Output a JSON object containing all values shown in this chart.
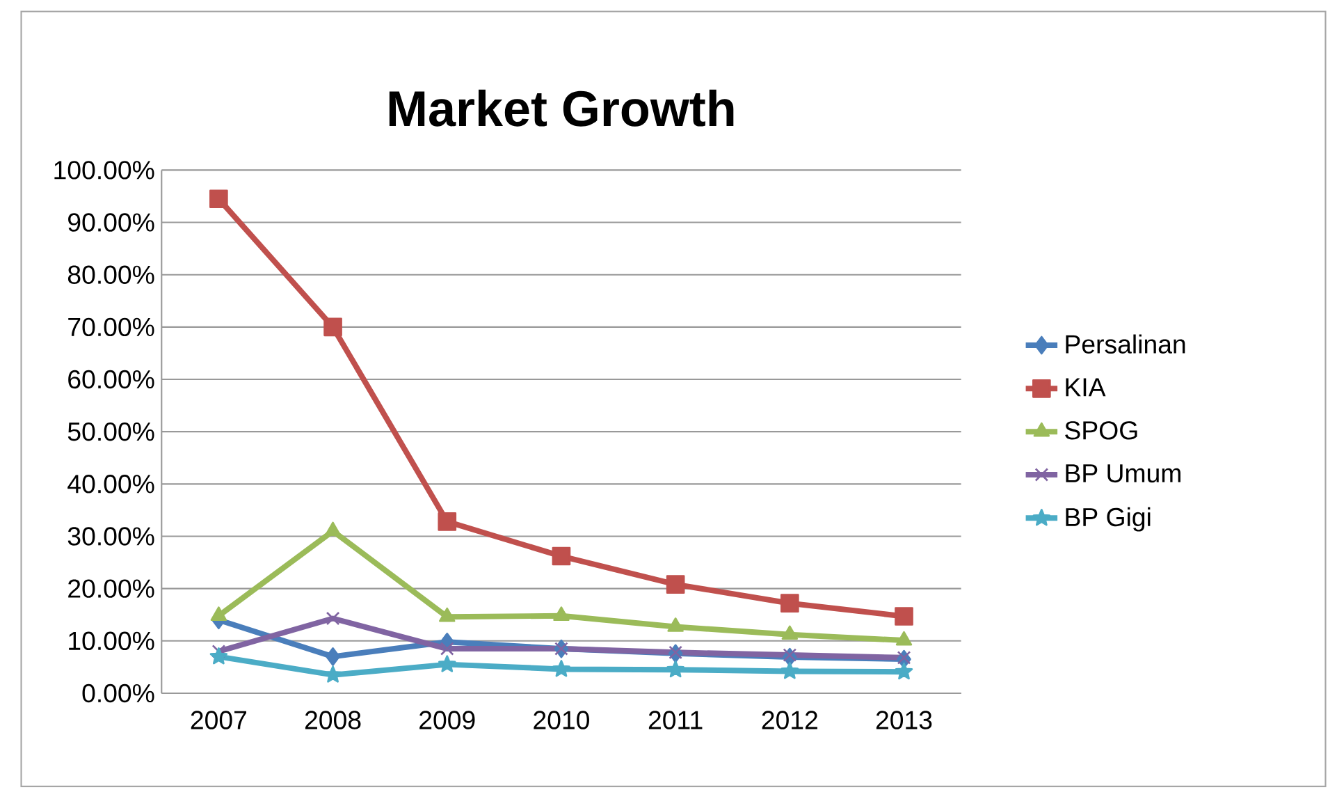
{
  "chart_data": {
    "type": "line",
    "title": "Market Growth",
    "categories": [
      "2007",
      "2008",
      "2009",
      "2010",
      "2011",
      "2012",
      "2013"
    ],
    "series": [
      {
        "name": "Persalinan",
        "color": "#4a7ebb",
        "marker": "diamond",
        "values": [
          14.0,
          7.0,
          9.8,
          8.5,
          7.6,
          6.9,
          6.5
        ]
      },
      {
        "name": "KIA",
        "color": "#c0504d",
        "marker": "square",
        "values": [
          94.5,
          70.0,
          32.8,
          26.2,
          20.8,
          17.2,
          14.7
        ]
      },
      {
        "name": "SPOG",
        "color": "#9bbb59",
        "marker": "triangle",
        "values": [
          14.8,
          31.0,
          14.6,
          14.8,
          12.7,
          11.2,
          10.1
        ]
      },
      {
        "name": "BP Umum",
        "color": "#8064a2",
        "marker": "cross",
        "values": [
          8.0,
          14.3,
          8.5,
          8.5,
          7.8,
          7.3,
          6.8
        ]
      },
      {
        "name": "BP Gigi",
        "color": "#4bacc6",
        "marker": "star",
        "values": [
          7.0,
          3.5,
          5.5,
          4.6,
          4.5,
          4.2,
          4.1
        ]
      }
    ],
    "ylim": [
      0,
      100
    ],
    "yticks": [
      {
        "value": 0,
        "label": "0.00%"
      },
      {
        "value": 10,
        "label": "10.00%"
      },
      {
        "value": 20,
        "label": "20.00%"
      },
      {
        "value": 30,
        "label": "30.00%"
      },
      {
        "value": 40,
        "label": "40.00%"
      },
      {
        "value": 50,
        "label": "50.00%"
      },
      {
        "value": 60,
        "label": "60.00%"
      },
      {
        "value": 70,
        "label": "70.00%"
      },
      {
        "value": 80,
        "label": "80.00%"
      },
      {
        "value": 90,
        "label": "90.00%"
      },
      {
        "value": 100,
        "label": "100.00%"
      }
    ],
    "grid": "y",
    "legend": "right",
    "line_style": "solid"
  }
}
